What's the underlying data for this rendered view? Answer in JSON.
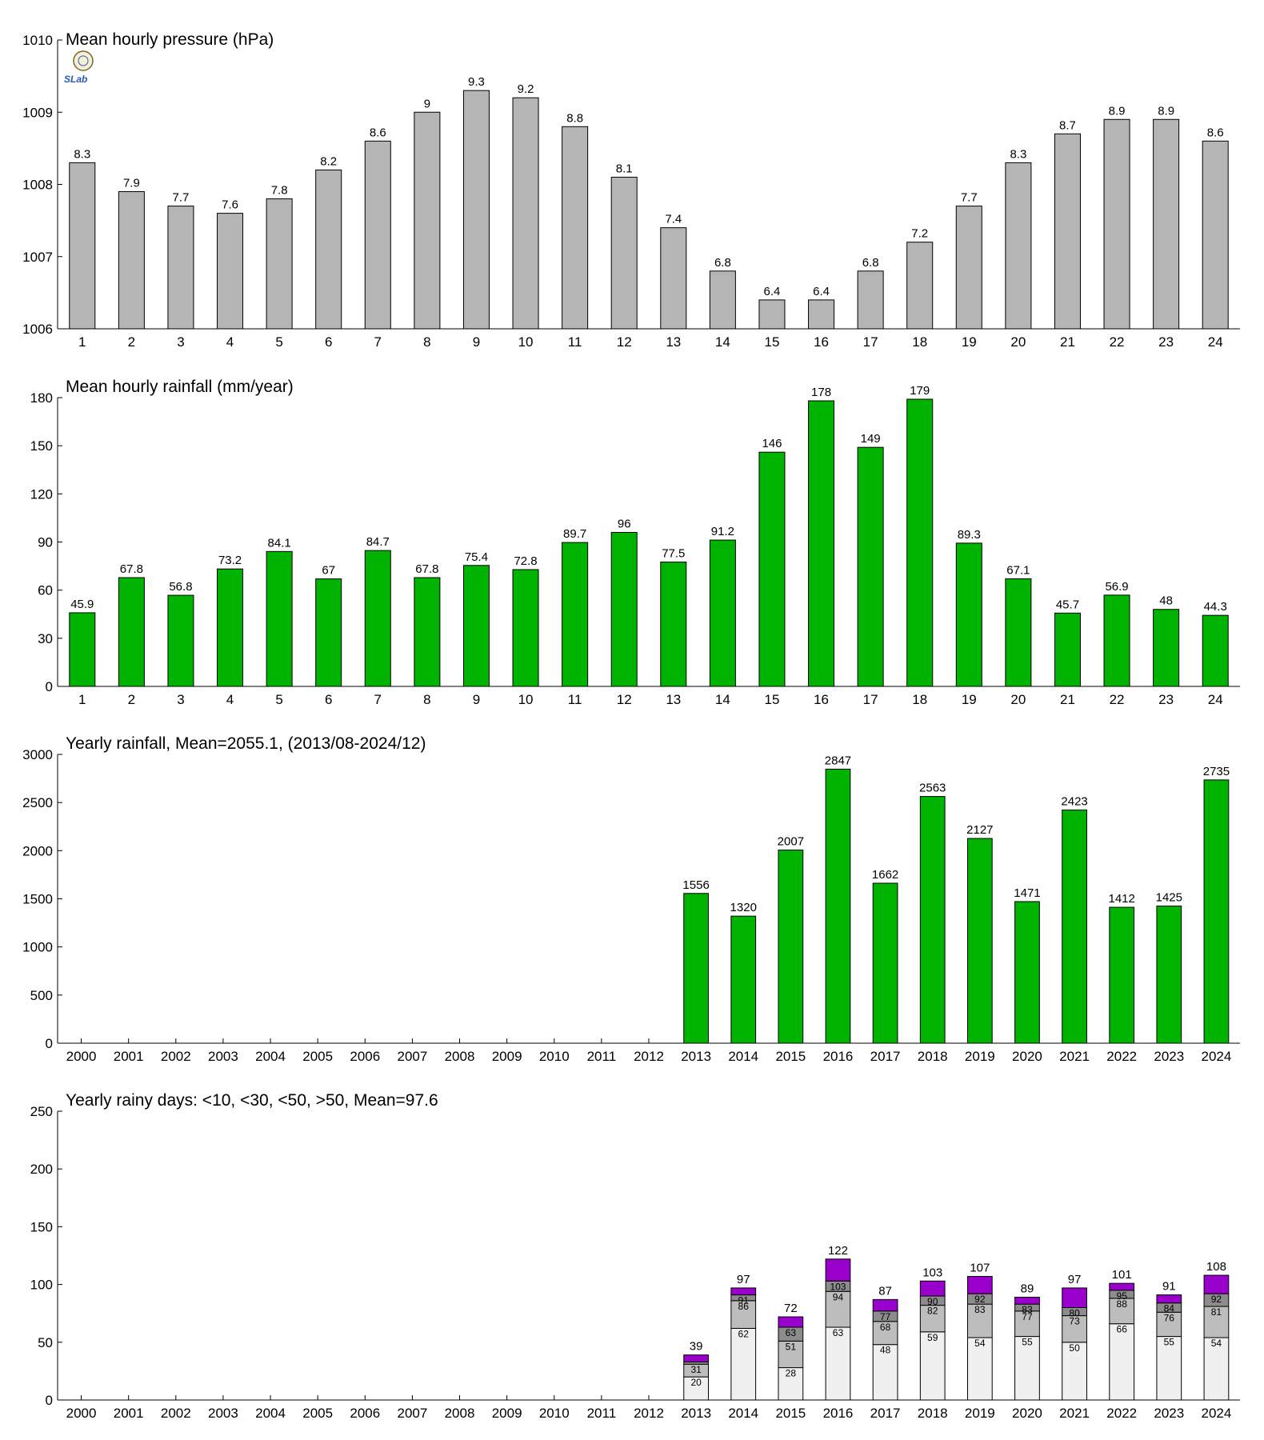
{
  "colors": {
    "pressure": "#b5b5b5",
    "rainfall": "#00b300",
    "rainy_lt10": "#f0f0f0",
    "rainy_lt30": "#bdbdbd",
    "rainy_lt50": "#8c8c8c",
    "rainy_gt50": "#9900cc"
  },
  "logo": {
    "text": "SLab"
  },
  "chart_data": [
    {
      "id": "pressure",
      "type": "bar",
      "title": "Mean hourly pressure (hPa)",
      "ylim": [
        1006,
        1010
      ],
      "yticks": [
        1006,
        1007,
        1008,
        1009,
        1010
      ],
      "categories": [
        "1",
        "2",
        "3",
        "4",
        "5",
        "6",
        "7",
        "8",
        "9",
        "10",
        "11",
        "12",
        "13",
        "14",
        "15",
        "16",
        "17",
        "18",
        "19",
        "20",
        "21",
        "22",
        "23",
        "24"
      ],
      "values": [
        1008.3,
        1007.9,
        1007.7,
        1007.6,
        1007.8,
        1008.2,
        1008.6,
        1009,
        1009.3,
        1009.2,
        1008.8,
        1008.1,
        1007.4,
        1006.8,
        1006.4,
        1006.4,
        1006.8,
        1007.2,
        1007.7,
        1008.3,
        1008.7,
        1008.9,
        1008.9,
        1008.6
      ],
      "labels": [
        "8.3",
        "7.9",
        "7.7",
        "7.6",
        "7.8",
        "8.2",
        "8.6",
        "9",
        "9.3",
        "9.2",
        "8.8",
        "8.1",
        "7.4",
        "6.8",
        "6.4",
        "6.4",
        "6.8",
        "7.2",
        "7.7",
        "8.3",
        "8.7",
        "8.9",
        "8.9",
        "8.6"
      ]
    },
    {
      "id": "hourly_rain",
      "type": "bar",
      "title": "Mean hourly rainfall (mm/year)",
      "ylim": [
        0,
        180
      ],
      "yticks": [
        0,
        30,
        60,
        90,
        120,
        150,
        180
      ],
      "categories": [
        "1",
        "2",
        "3",
        "4",
        "5",
        "6",
        "7",
        "8",
        "9",
        "10",
        "11",
        "12",
        "13",
        "14",
        "15",
        "16",
        "17",
        "18",
        "19",
        "20",
        "21",
        "22",
        "23",
        "24"
      ],
      "values": [
        45.9,
        67.8,
        56.8,
        73.2,
        84.1,
        67,
        84.7,
        67.8,
        75.4,
        72.8,
        89.7,
        96,
        77.5,
        91.2,
        146,
        178,
        149,
        179,
        89.3,
        67.1,
        45.7,
        56.9,
        48,
        44.3
      ],
      "labels": [
        "45.9",
        "67.8",
        "56.8",
        "73.2",
        "84.1",
        "67",
        "84.7",
        "67.8",
        "75.4",
        "72.8",
        "89.7",
        "96",
        "77.5",
        "91.2",
        "146",
        "178",
        "149",
        "179",
        "89.3",
        "67.1",
        "45.7",
        "56.9",
        "48",
        "44.3"
      ]
    },
    {
      "id": "yearly_rain",
      "type": "bar",
      "title": "Yearly rainfall, Mean=2055.1, (2013/08-2024/12)",
      "ylim": [
        0,
        3000
      ],
      "yticks": [
        0,
        500,
        1000,
        1500,
        2000,
        2500,
        3000
      ],
      "categories": [
        "2000",
        "2001",
        "2002",
        "2003",
        "2004",
        "2005",
        "2006",
        "2007",
        "2008",
        "2009",
        "2010",
        "2011",
        "2012",
        "2013",
        "2014",
        "2015",
        "2016",
        "2017",
        "2018",
        "2019",
        "2020",
        "2021",
        "2022",
        "2023",
        "2024"
      ],
      "values": [
        null,
        null,
        null,
        null,
        null,
        null,
        null,
        null,
        null,
        null,
        null,
        null,
        null,
        1556,
        1320,
        2007,
        2847,
        1662,
        2563,
        2127,
        1471,
        2423,
        1412,
        1425,
        2735
      ],
      "labels": [
        "",
        "",
        "",
        "",
        "",
        "",
        "",
        "",
        "",
        "",
        "",
        "",
        "",
        "1556",
        "1320",
        "2007",
        "2847",
        "1662",
        "2563",
        "2127",
        "1471",
        "2423",
        "1412",
        "1425",
        "2735"
      ]
    },
    {
      "id": "rainy_days",
      "type": "bar",
      "stacked": true,
      "title": "Yearly rainy days: <10, <30, <50, >50, Mean=97.6",
      "ylim": [
        0,
        250
      ],
      "yticks": [
        0,
        50,
        100,
        150,
        200,
        250
      ],
      "categories": [
        "2000",
        "2001",
        "2002",
        "2003",
        "2004",
        "2005",
        "2006",
        "2007",
        "2008",
        "2009",
        "2010",
        "2011",
        "2012",
        "2013",
        "2014",
        "2015",
        "2016",
        "2017",
        "2018",
        "2019",
        "2020",
        "2021",
        "2022",
        "2023",
        "2024"
      ],
      "cumulative": [
        null,
        null,
        null,
        null,
        null,
        null,
        null,
        null,
        null,
        null,
        null,
        null,
        null,
        [
          20,
          31,
          33,
          39
        ],
        [
          62,
          86,
          91,
          97
        ],
        [
          28,
          51,
          63,
          72
        ],
        [
          63,
          94,
          103,
          122
        ],
        [
          48,
          68,
          77,
          87
        ],
        [
          59,
          82,
          90,
          103
        ],
        [
          54,
          83,
          92,
          107
        ],
        [
          55,
          77,
          83,
          89
        ],
        [
          50,
          73,
          80,
          97
        ],
        [
          66,
          88,
          95,
          101
        ],
        [
          55,
          76,
          84,
          91
        ],
        [
          54,
          81,
          92,
          108
        ]
      ],
      "segment_labels": [
        null,
        null,
        null,
        null,
        null,
        null,
        null,
        null,
        null,
        null,
        null,
        null,
        null,
        [
          "20",
          "31",
          "",
          ""
        ],
        [
          "62",
          "86",
          "91",
          ""
        ],
        [
          "28",
          "51",
          "63",
          ""
        ],
        [
          "63",
          "94",
          "103",
          ""
        ],
        [
          "48",
          "68",
          "77",
          ""
        ],
        [
          "59",
          "82",
          "90",
          ""
        ],
        [
          "54",
          "83",
          "92",
          ""
        ],
        [
          "55",
          "77",
          "83",
          ""
        ],
        [
          "50",
          "73",
          "80",
          ""
        ],
        [
          "66",
          "88",
          "95",
          ""
        ],
        [
          "55",
          "76",
          "84",
          ""
        ],
        [
          "54",
          "81",
          "92",
          ""
        ]
      ],
      "totals": [
        "",
        "",
        "",
        "",
        "",
        "",
        "",
        "",
        "",
        "",
        "",
        "",
        "",
        "39",
        "97",
        "72",
        "122",
        "87",
        "103",
        "107",
        "89",
        "97",
        "101",
        "91",
        "108"
      ]
    }
  ]
}
